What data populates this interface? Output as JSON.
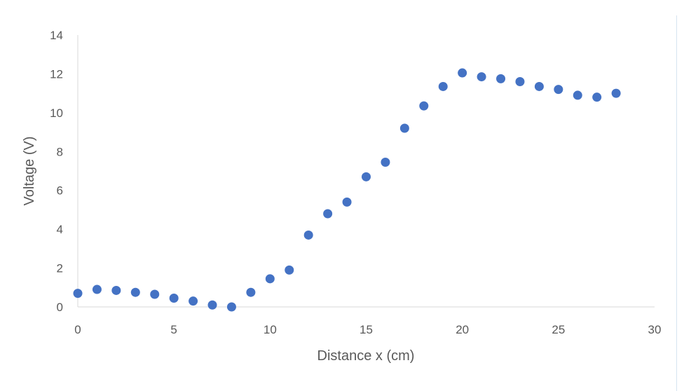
{
  "chart_data": {
    "type": "scatter",
    "xlabel": "Distance x (cm)",
    "ylabel": "Voltage (V)",
    "xlim": [
      0,
      30
    ],
    "ylim": [
      0,
      14
    ],
    "xticks": [
      "0",
      "5",
      "10",
      "15",
      "20",
      "25",
      "30"
    ],
    "yticks": [
      "0",
      "2",
      "4",
      "6",
      "8",
      "10",
      "12",
      "14"
    ],
    "grid": false,
    "marker_color": "#4472C4",
    "series": [
      {
        "x": [
          0,
          1,
          2,
          3,
          4,
          5,
          6,
          7,
          8,
          9,
          10,
          11,
          12,
          13,
          14,
          15,
          16,
          17,
          18,
          19,
          20,
          21,
          22,
          23,
          24,
          25,
          26,
          27,
          28
        ],
        "y": [
          0.7,
          0.9,
          0.85,
          0.75,
          0.65,
          0.45,
          0.3,
          0.1,
          0.0,
          0.75,
          1.45,
          1.9,
          3.7,
          4.8,
          5.4,
          6.7,
          7.45,
          9.2,
          10.35,
          11.35,
          12.05,
          11.85,
          11.75,
          11.6,
          11.35,
          11.2,
          10.9,
          10.8,
          11.0
        ]
      }
    ]
  }
}
